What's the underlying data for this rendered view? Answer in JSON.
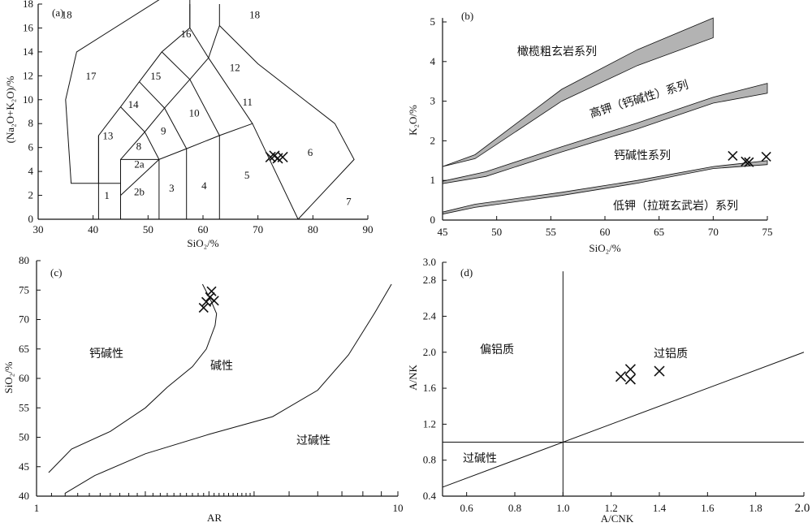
{
  "chart_data": [
    {
      "type": "scatter",
      "panel_label": "(a)",
      "xlabel": "SiO₂/%",
      "ylabel": "(Na₂O+K₂O)/%",
      "xlim": [
        30,
        90
      ],
      "ylim": [
        0,
        18
      ],
      "xticks": [
        30,
        40,
        50,
        60,
        70,
        80,
        90
      ],
      "yticks": [
        0,
        2,
        4,
        6,
        8,
        10,
        12,
        14,
        16,
        18
      ],
      "field_labels": [
        "1",
        "2a",
        "2b",
        "3",
        "4",
        "5",
        "6",
        "7",
        "8",
        "9",
        "10",
        "11",
        "12",
        "13",
        "14",
        "15",
        "16",
        "17",
        "18",
        "18"
      ],
      "points": [
        {
          "x": 72.3,
          "y": 5.2
        },
        {
          "x": 73.0,
          "y": 5.3
        },
        {
          "x": 73.6,
          "y": 5.1
        },
        {
          "x": 74.5,
          "y": 5.2
        }
      ]
    },
    {
      "type": "scatter",
      "panel_label": "(b)",
      "xlabel": "SiO₂/%",
      "ylabel": "K₂O/%",
      "xlim": [
        45,
        75
      ],
      "ylim": [
        0,
        5
      ],
      "xticks": [
        45,
        50,
        55,
        60,
        65,
        70,
        75
      ],
      "yticks": [
        0,
        1,
        2,
        3,
        4,
        5
      ],
      "series_labels": [
        "橄榄粗玄岩系列",
        "高钾（钙碱性）系列",
        "钙碱性系列",
        "低钾（拉斑玄武岩）系列"
      ],
      "points": [
        {
          "x": 71.8,
          "y": 1.62
        },
        {
          "x": 73.0,
          "y": 1.48
        },
        {
          "x": 73.3,
          "y": 1.46
        },
        {
          "x": 74.9,
          "y": 1.6
        }
      ]
    },
    {
      "type": "scatter",
      "panel_label": "(c)",
      "xlabel": "AR",
      "ylabel": "SiO₂/%",
      "xscale": "log",
      "xlim": [
        1,
        10
      ],
      "ylim": [
        40,
        80
      ],
      "xticks": [
        1,
        10
      ],
      "yticks": [
        40,
        45,
        50,
        55,
        60,
        65,
        70,
        75,
        80
      ],
      "region_labels": [
        "钙碱性",
        "碱性",
        "过碱性"
      ],
      "points": [
        {
          "x": 2.9,
          "y": 72.0
        },
        {
          "x": 2.95,
          "y": 73.0
        },
        {
          "x": 3.02,
          "y": 73.8
        },
        {
          "x": 3.05,
          "y": 74.8
        },
        {
          "x": 3.1,
          "y": 73.2
        }
      ]
    },
    {
      "type": "scatter",
      "panel_label": "(d)",
      "xlabel": "A/CNK",
      "ylabel": "A/NK",
      "xlim": [
        0.5,
        2.0
      ],
      "ylim": [
        0.4,
        3.0
      ],
      "xticks": [
        "0.6",
        "0.8",
        "1.0",
        "1.2",
        "1.4",
        "1.6",
        "1.8",
        "2.0"
      ],
      "yticks": [
        "0.4",
        "0.8",
        "1.2",
        "1.6",
        "2.0",
        "2.4",
        "2.8",
        "3.0"
      ],
      "region_labels": [
        "偏铝质",
        "过铝质",
        "过碱性"
      ],
      "points": [
        {
          "x": 1.24,
          "y": 1.73
        },
        {
          "x": 1.28,
          "y": 1.81
        },
        {
          "x": 1.28,
          "y": 1.7
        },
        {
          "x": 1.4,
          "y": 1.79
        }
      ]
    }
  ]
}
